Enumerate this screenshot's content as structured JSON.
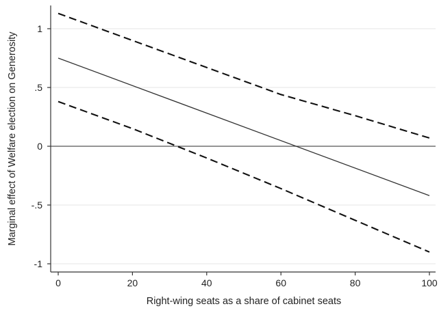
{
  "chart_data": {
    "type": "line",
    "title": "",
    "xlabel": "Right-wing seats as a share of cabinet seats",
    "ylabel": "Marginal effect of Welfare election on Generosity",
    "xlim": [
      0,
      100
    ],
    "ylim": [
      -1,
      1
    ],
    "x_ticks": [
      0,
      20,
      40,
      60,
      80,
      100
    ],
    "y_ticks": [
      1,
      0.5,
      0,
      -0.5,
      -1
    ],
    "y_tick_labels": [
      "1",
      ".5",
      "0",
      "-.5",
      "-1"
    ],
    "grid": "horizontal",
    "legend": "none",
    "reference_line": {
      "y": 0
    },
    "series": [
      {
        "style": "solid",
        "color": "#333333",
        "x": [
          0,
          100
        ],
        "y": [
          0.75,
          -0.42
        ]
      },
      {
        "style": "dashed",
        "color": "#111111",
        "x": [
          0,
          20,
          40,
          60,
          80,
          100
        ],
        "y": [
          1.13,
          0.9,
          0.67,
          0.44,
          0.26,
          0.07
        ]
      },
      {
        "style": "dashed",
        "color": "#111111",
        "x": [
          0,
          20,
          40,
          60,
          80,
          100
        ],
        "y": [
          0.38,
          0.15,
          -0.1,
          -0.36,
          -0.63,
          -0.9
        ]
      }
    ]
  }
}
